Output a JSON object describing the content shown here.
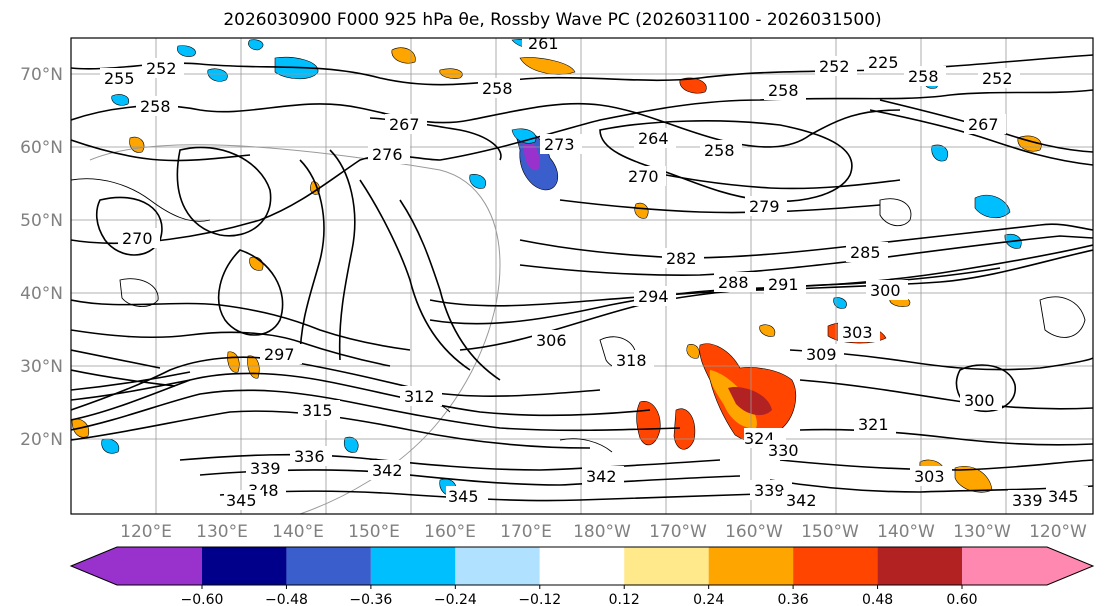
{
  "figure": {
    "title": "2026030900 F000 925 hPa θe, Rossby Wave PC (2026031100 - 2026031500)"
  },
  "axes": {
    "lat_labels": [
      "70°N",
      "60°N",
      "50°N",
      "40°N",
      "30°N",
      "20°N"
    ],
    "lon_labels": [
      "120°E",
      "130°E",
      "140°E",
      "150°E",
      "160°E",
      "170°E",
      "180°W",
      "170°W",
      "160°W",
      "150°W",
      "140°W",
      "130°W",
      "120°W"
    ]
  },
  "contours": {
    "labels": [
      {
        "text": "255"
      },
      {
        "text": "252"
      },
      {
        "text": "258"
      },
      {
        "text": "261"
      },
      {
        "text": "258"
      },
      {
        "text": "252"
      },
      {
        "text": "225"
      },
      {
        "text": "258"
      },
      {
        "text": "252"
      },
      {
        "text": "258"
      },
      {
        "text": "267"
      },
      {
        "text": "273"
      },
      {
        "text": "264"
      },
      {
        "text": "258"
      },
      {
        "text": "276"
      },
      {
        "text": "270"
      },
      {
        "text": "279"
      },
      {
        "text": "282"
      },
      {
        "text": "285"
      },
      {
        "text": "288"
      },
      {
        "text": "291"
      },
      {
        "text": "294"
      },
      {
        "text": "300"
      },
      {
        "text": "303"
      },
      {
        "text": "306"
      },
      {
        "text": "309"
      },
      {
        "text": "297"
      },
      {
        "text": "312"
      },
      {
        "text": "315"
      },
      {
        "text": "318"
      },
      {
        "text": "321"
      },
      {
        "text": "324"
      },
      {
        "text": "330"
      },
      {
        "text": "336"
      },
      {
        "text": "339"
      },
      {
        "text": "342"
      },
      {
        "text": "345"
      },
      {
        "text": "348"
      },
      {
        "text": "342"
      },
      {
        "text": "339"
      },
      {
        "text": "342"
      },
      {
        "text": "339"
      },
      {
        "text": "345"
      },
      {
        "text": "300"
      },
      {
        "text": "303"
      },
      {
        "text": "345"
      },
      {
        "text": "270"
      },
      {
        "text": "267"
      }
    ]
  },
  "colorbar": {
    "ticks": [
      "−0.60",
      "−0.48",
      "−0.36",
      "−0.24",
      "−0.12",
      "0.12",
      "0.24",
      "0.36",
      "0.48",
      "0.60"
    ],
    "colors": [
      "#9932cc",
      "#00008b",
      "#3a5fcd",
      "#00bfff",
      "#b0e2ff",
      "#ffffff",
      "#ffe98a",
      "#ffa500",
      "#ff4500",
      "#b22222",
      "#ff88b0"
    ]
  }
}
